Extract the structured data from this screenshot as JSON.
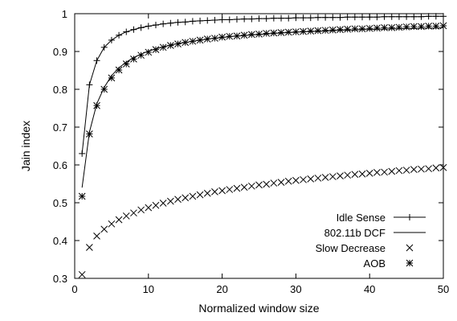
{
  "chart_data": {
    "type": "line",
    "xlabel": "Normalized window size",
    "ylabel": "Jain index",
    "xlim": [
      0,
      50
    ],
    "ylim": [
      0.3,
      1
    ],
    "x_ticks": [
      0,
      10,
      20,
      30,
      40,
      50
    ],
    "y_ticks": [
      0.3,
      0.4,
      0.5,
      0.6,
      0.7,
      0.8,
      0.9,
      1
    ],
    "y_tick_labels": [
      "0.3",
      "0.4",
      "0.5",
      "0.6",
      "0.7",
      "0.8",
      "0.9",
      "1"
    ],
    "grid": false,
    "legend_position": "bottom-right",
    "x": [
      1,
      2,
      3,
      4,
      5,
      6,
      7,
      8,
      9,
      10,
      11,
      12,
      13,
      14,
      15,
      16,
      17,
      18,
      19,
      20,
      21,
      22,
      23,
      24,
      25,
      26,
      27,
      28,
      29,
      30,
      31,
      32,
      33,
      34,
      35,
      36,
      37,
      38,
      39,
      40,
      41,
      42,
      43,
      44,
      45,
      46,
      47,
      48,
      49,
      50
    ],
    "series": [
      {
        "name": "Idle Sense",
        "style": "line-plus",
        "values": [
          0.63,
          0.812,
          0.876,
          0.911,
          0.93,
          0.943,
          0.952,
          0.958,
          0.963,
          0.967,
          0.97,
          0.973,
          0.975,
          0.977,
          0.978,
          0.98,
          0.981,
          0.982,
          0.983,
          0.984,
          0.984,
          0.985,
          0.986,
          0.986,
          0.987,
          0.987,
          0.988,
          0.988,
          0.988,
          0.989,
          0.989,
          0.989,
          0.99,
          0.99,
          0.99,
          0.99,
          0.991,
          0.991,
          0.991,
          0.991,
          0.991,
          0.992,
          0.992,
          0.992,
          0.992,
          0.992,
          0.992,
          0.993,
          0.993,
          0.993
        ]
      },
      {
        "name": "802.11b DCF",
        "style": "line",
        "values": [
          0.54,
          0.687,
          0.762,
          0.805,
          0.836,
          0.857,
          0.872,
          0.884,
          0.893,
          0.901,
          0.907,
          0.912,
          0.917,
          0.921,
          0.924,
          0.927,
          0.93,
          0.933,
          0.935,
          0.937,
          0.939,
          0.941,
          0.942,
          0.944,
          0.945,
          0.946,
          0.948,
          0.949,
          0.95,
          0.951,
          0.952,
          0.953,
          0.953,
          0.954,
          0.955,
          0.956,
          0.956,
          0.957,
          0.958,
          0.958,
          0.959,
          0.959,
          0.96,
          0.96,
          0.961,
          0.961,
          0.962,
          0.962,
          0.962,
          0.963
        ]
      },
      {
        "name": "Slow Decrease",
        "style": "cross",
        "values": [
          0.31,
          0.382,
          0.412,
          0.43,
          0.444,
          0.455,
          0.465,
          0.473,
          0.481,
          0.487,
          0.493,
          0.499,
          0.504,
          0.509,
          0.513,
          0.517,
          0.521,
          0.525,
          0.529,
          0.532,
          0.535,
          0.538,
          0.541,
          0.544,
          0.547,
          0.549,
          0.552,
          0.554,
          0.557,
          0.559,
          0.561,
          0.563,
          0.565,
          0.567,
          0.569,
          0.571,
          0.573,
          0.575,
          0.576,
          0.578,
          0.58,
          0.581,
          0.583,
          0.585,
          0.586,
          0.588,
          0.589,
          0.59,
          0.592,
          0.593
        ]
      },
      {
        "name": "AOB",
        "style": "star",
        "values": [
          0.517,
          0.682,
          0.757,
          0.8,
          0.83,
          0.851,
          0.867,
          0.88,
          0.89,
          0.898,
          0.905,
          0.911,
          0.916,
          0.92,
          0.924,
          0.927,
          0.93,
          0.933,
          0.935,
          0.938,
          0.94,
          0.941,
          0.943,
          0.945,
          0.946,
          0.948,
          0.949,
          0.95,
          0.951,
          0.952,
          0.953,
          0.954,
          0.955,
          0.956,
          0.957,
          0.958,
          0.959,
          0.96,
          0.96,
          0.961,
          0.962,
          0.963,
          0.963,
          0.964,
          0.965,
          0.966,
          0.966,
          0.967,
          0.967,
          0.968
        ]
      }
    ]
  }
}
